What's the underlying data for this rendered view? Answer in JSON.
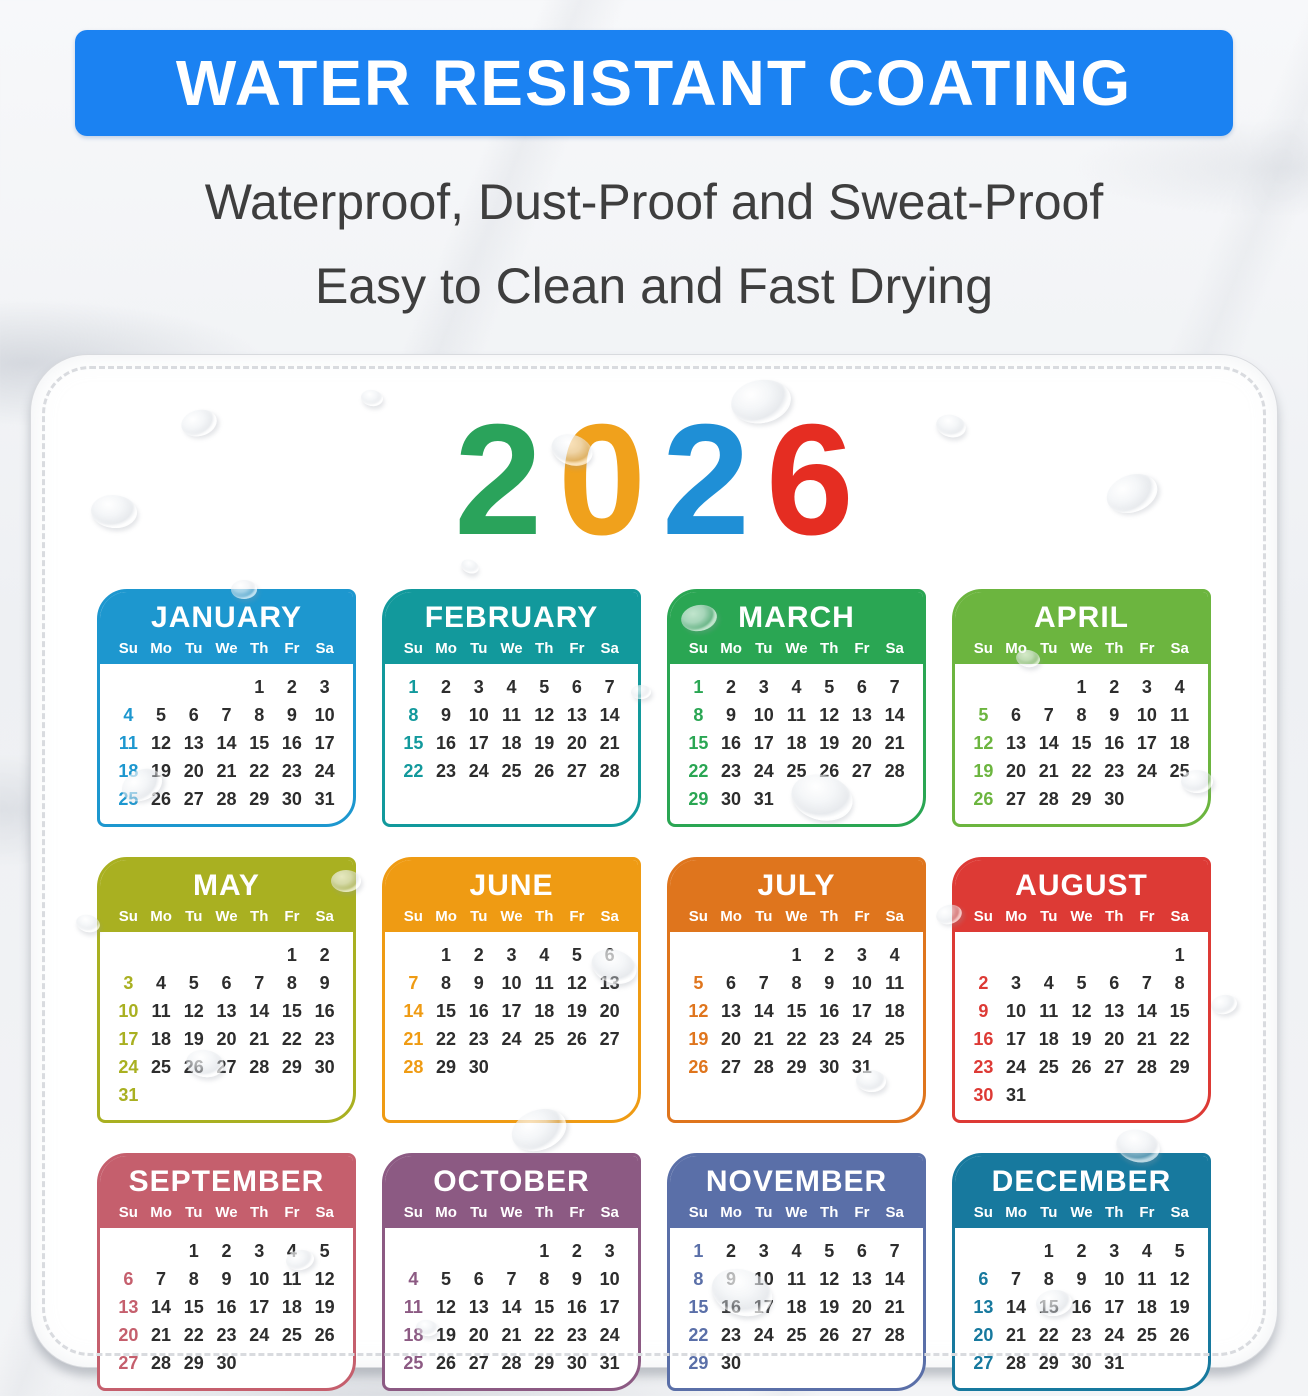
{
  "banner": {
    "title": "WATER RESISTANT COATING",
    "bg": "#1b82f2"
  },
  "subtitle": {
    "line1": "Waterproof, Dust-Proof and Sweat-Proof",
    "line2": "Easy to Clean and Fast Drying"
  },
  "year": {
    "value": "2026",
    "digits": [
      {
        "char": "2",
        "color": "#2aa35b"
      },
      {
        "char": "0",
        "color": "#f0a11c"
      },
      {
        "char": "2",
        "color": "#1f8fd6"
      },
      {
        "char": "6",
        "color": "#e52d22"
      }
    ]
  },
  "day_headers": [
    "Su",
    "Mo",
    "Tu",
    "We",
    "Th",
    "Fr",
    "Sa"
  ],
  "months": [
    {
      "name": "JANUARY",
      "color": "#1d97cf",
      "weeks": [
        [
          "",
          "",
          "",
          "",
          "1",
          "2",
          "3"
        ],
        [
          "4",
          "5",
          "6",
          "7",
          "8",
          "9",
          "10"
        ],
        [
          "11",
          "12",
          "13",
          "14",
          "15",
          "16",
          "17"
        ],
        [
          "18",
          "19",
          "20",
          "21",
          "22",
          "23",
          "24"
        ],
        [
          "25",
          "26",
          "27",
          "28",
          "29",
          "30",
          "31"
        ]
      ]
    },
    {
      "name": "FEBRUARY",
      "color": "#12999c",
      "weeks": [
        [
          "1",
          "2",
          "3",
          "4",
          "5",
          "6",
          "7"
        ],
        [
          "8",
          "9",
          "10",
          "11",
          "12",
          "13",
          "14"
        ],
        [
          "15",
          "16",
          "17",
          "18",
          "19",
          "20",
          "21"
        ],
        [
          "22",
          "23",
          "24",
          "25",
          "26",
          "27",
          "28"
        ]
      ]
    },
    {
      "name": "MARCH",
      "color": "#2aa653",
      "weeks": [
        [
          "1",
          "2",
          "3",
          "4",
          "5",
          "6",
          "7"
        ],
        [
          "8",
          "9",
          "10",
          "11",
          "12",
          "13",
          "14"
        ],
        [
          "15",
          "16",
          "17",
          "18",
          "19",
          "20",
          "21"
        ],
        [
          "22",
          "23",
          "24",
          "25",
          "26",
          "27",
          "28"
        ],
        [
          "29",
          "30",
          "31",
          "",
          "",
          "",
          ""
        ]
      ]
    },
    {
      "name": "APRIL",
      "color": "#6cb53f",
      "weeks": [
        [
          "",
          "",
          "",
          "1",
          "2",
          "3",
          "4"
        ],
        [
          "5",
          "6",
          "7",
          "8",
          "9",
          "10",
          "11"
        ],
        [
          "12",
          "13",
          "14",
          "15",
          "16",
          "17",
          "18"
        ],
        [
          "19",
          "20",
          "21",
          "22",
          "23",
          "24",
          "25"
        ],
        [
          "26",
          "27",
          "28",
          "29",
          "30",
          "",
          ""
        ]
      ]
    },
    {
      "name": "MAY",
      "color": "#a9b021",
      "weeks": [
        [
          "",
          "",
          "",
          "",
          "",
          "1",
          "2"
        ],
        [
          "3",
          "4",
          "5",
          "6",
          "7",
          "8",
          "9"
        ],
        [
          "10",
          "11",
          "12",
          "13",
          "14",
          "15",
          "16"
        ],
        [
          "17",
          "18",
          "19",
          "20",
          "21",
          "22",
          "23"
        ],
        [
          "24",
          "25",
          "26",
          "27",
          "28",
          "29",
          "30"
        ],
        [
          "31",
          "",
          "",
          "",
          "",
          "",
          ""
        ]
      ]
    },
    {
      "name": "JUNE",
      "color": "#ef9b13",
      "weeks": [
        [
          "",
          "1",
          "2",
          "3",
          "4",
          "5",
          "6"
        ],
        [
          "7",
          "8",
          "9",
          "10",
          "11",
          "12",
          "13"
        ],
        [
          "14",
          "15",
          "16",
          "17",
          "18",
          "19",
          "20"
        ],
        [
          "21",
          "22",
          "23",
          "24",
          "25",
          "26",
          "27"
        ],
        [
          "28",
          "29",
          "30",
          "",
          "",
          "",
          ""
        ]
      ]
    },
    {
      "name": "JULY",
      "color": "#df751d",
      "weeks": [
        [
          "",
          "",
          "",
          "1",
          "2",
          "3",
          "4"
        ],
        [
          "5",
          "6",
          "7",
          "8",
          "9",
          "10",
          "11"
        ],
        [
          "12",
          "13",
          "14",
          "15",
          "16",
          "17",
          "18"
        ],
        [
          "19",
          "20",
          "21",
          "22",
          "23",
          "24",
          "25"
        ],
        [
          "26",
          "27",
          "28",
          "29",
          "30",
          "31",
          ""
        ]
      ]
    },
    {
      "name": "AUGUST",
      "color": "#dd3a35",
      "weeks": [
        [
          "",
          "",
          "",
          "",
          "",
          "",
          "1"
        ],
        [
          "2",
          "3",
          "4",
          "5",
          "6",
          "7",
          "8"
        ],
        [
          "9",
          "10",
          "11",
          "12",
          "13",
          "14",
          "15"
        ],
        [
          "16",
          "17",
          "18",
          "19",
          "20",
          "21",
          "22"
        ],
        [
          "23",
          "24",
          "25",
          "26",
          "27",
          "28",
          "29"
        ],
        [
          "30",
          "31",
          "",
          "",
          "",
          "",
          ""
        ]
      ]
    },
    {
      "name": "SEPTEMBER",
      "color": "#c55f6d",
      "weeks": [
        [
          "",
          "",
          "1",
          "2",
          "3",
          "4",
          "5"
        ],
        [
          "6",
          "7",
          "8",
          "9",
          "10",
          "11",
          "12"
        ],
        [
          "13",
          "14",
          "15",
          "16",
          "17",
          "18",
          "19"
        ],
        [
          "20",
          "21",
          "22",
          "23",
          "24",
          "25",
          "26"
        ],
        [
          "27",
          "28",
          "29",
          "30",
          "",
          "",
          ""
        ]
      ]
    },
    {
      "name": "OCTOBER",
      "color": "#8c5a83",
      "weeks": [
        [
          "",
          "",
          "",
          "",
          "1",
          "2",
          "3"
        ],
        [
          "4",
          "5",
          "6",
          "7",
          "8",
          "9",
          "10"
        ],
        [
          "11",
          "12",
          "13",
          "14",
          "15",
          "16",
          "17"
        ],
        [
          "18",
          "19",
          "20",
          "21",
          "22",
          "23",
          "24"
        ],
        [
          "25",
          "26",
          "27",
          "28",
          "29",
          "30",
          "31"
        ]
      ]
    },
    {
      "name": "NOVEMBER",
      "color": "#5a6fa8",
      "weeks": [
        [
          "1",
          "2",
          "3",
          "4",
          "5",
          "6",
          "7"
        ],
        [
          "8",
          "9",
          "10",
          "11",
          "12",
          "13",
          "14"
        ],
        [
          "15",
          "16",
          "17",
          "18",
          "19",
          "20",
          "21"
        ],
        [
          "22",
          "23",
          "24",
          "25",
          "26",
          "27",
          "28"
        ],
        [
          "29",
          "30",
          "",
          "",
          "",
          "",
          ""
        ]
      ]
    },
    {
      "name": "DECEMBER",
      "color": "#17799e",
      "weeks": [
        [
          "",
          "",
          "1",
          "2",
          "3",
          "4",
          "5"
        ],
        [
          "6",
          "7",
          "8",
          "9",
          "10",
          "11",
          "12"
        ],
        [
          "13",
          "14",
          "15",
          "16",
          "17",
          "18",
          "19"
        ],
        [
          "20",
          "21",
          "22",
          "23",
          "24",
          "25",
          "26"
        ],
        [
          "27",
          "28",
          "29",
          "30",
          "31",
          "",
          ""
        ]
      ]
    }
  ]
}
